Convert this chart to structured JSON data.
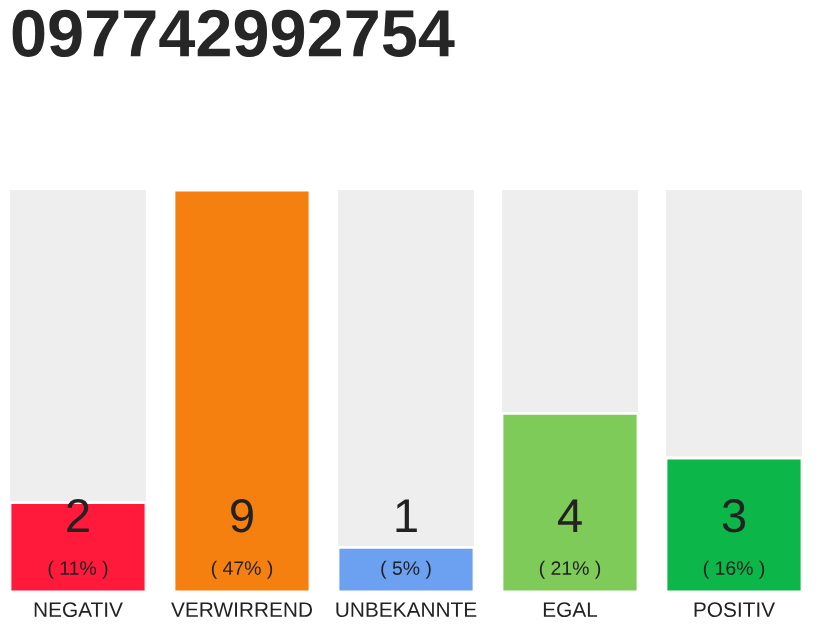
{
  "chart_data": {
    "type": "bar",
    "title": "097742992754",
    "categories": [
      "NEGATIV",
      "VERWIRREND",
      "UNBEKANNTE",
      "EGAL",
      "POSITIV"
    ],
    "values": [
      2,
      9,
      1,
      4,
      3
    ],
    "colors": [
      "#ff1a3c",
      "#f5800f",
      "#6ca0f0",
      "#7ecb5a",
      "#0cb648"
    ],
    "value_labels": [
      "2\n( 11% )",
      "9\n( 47% )",
      "1\n( 5% )",
      "4\n( 21% )",
      "3\n( 16% )"
    ],
    "ylim": [
      0,
      9
    ],
    "tick_labels": "x",
    "grid": false,
    "legend": false
  }
}
